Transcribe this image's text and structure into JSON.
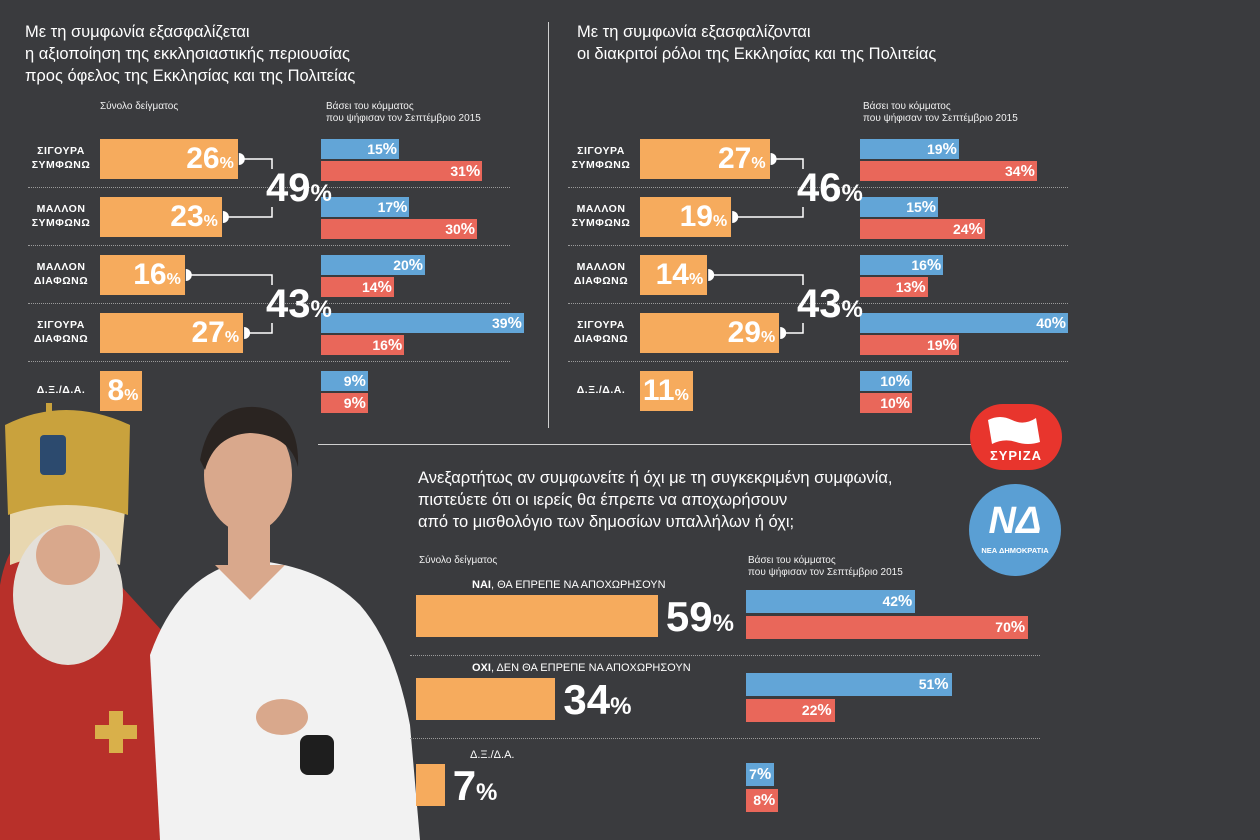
{
  "chart_data": [
    {
      "type": "bar",
      "title": "Με τη συμφωνία εξασφαλίζεται η αξιοποίηση της εκκλησιαστικής περιουσίας προς όφελος της Εκκλησίας και της Πολιτείας",
      "title_lines": [
        "Με τη συμφωνία εξασφαλίζεται",
        "η αξιοποίηση της εκκλησιαστικής περιουσίας",
        "προς όφελος της Εκκλησίας και της Πολιτείας"
      ],
      "total_label": "Σύνολο δείγματος",
      "party_label_lines": [
        "Βάσει του κόμματος",
        "που ψήφισαν τον Σεπτέμβριο 2015"
      ],
      "categories": [
        [
          "ΣΙΓΟΥΡΑ",
          "ΣΥΜΦΩΝΩ"
        ],
        [
          "ΜΑΛΛΟΝ",
          "ΣΥΜΦΩΝΩ"
        ],
        [
          "ΜΑΛΛΟΝ",
          "ΔΙΑΦΩΝΩ"
        ],
        [
          "ΣΙΓΟΥΡΑ",
          "ΔΙΑΦΩΝΩ"
        ],
        [
          "Δ.Ξ./Δ.Α."
        ]
      ],
      "total": [
        26,
        23,
        16,
        27,
        8
      ],
      "party_blue": [
        15,
        17,
        20,
        39,
        9
      ],
      "party_red": [
        31,
        30,
        14,
        16,
        9
      ],
      "agree_total": 49,
      "disagree_total": 43
    },
    {
      "type": "bar",
      "title": "Με τη συμφωνία εξασφαλίζονται οι διακριτοί ρόλοι της Εκκλησίας και της Πολιτείας",
      "title_lines": [
        "Με τη συμφωνία εξασφαλίζονται",
        "οι διακριτοί ρόλοι της Εκκλησίας και της Πολιτείας"
      ],
      "party_label_lines": [
        "Βάσει του κόμματος",
        "που ψήφισαν τον Σεπτέμβριο 2015"
      ],
      "categories": [
        [
          "ΣΙΓΟΥΡΑ",
          "ΣΥΜΦΩΝΩ"
        ],
        [
          "ΜΑΛΛΟΝ",
          "ΣΥΜΦΩΝΩ"
        ],
        [
          "ΜΑΛΛΟΝ",
          "ΔΙΑΦΩΝΩ"
        ],
        [
          "ΣΙΓΟΥΡΑ",
          "ΔΙΑΦΩΝΩ"
        ],
        [
          "Δ.Ξ./Δ.Α."
        ]
      ],
      "total": [
        27,
        19,
        14,
        29,
        11
      ],
      "party_blue": [
        19,
        15,
        16,
        40,
        10
      ],
      "party_red": [
        34,
        24,
        13,
        19,
        10
      ],
      "agree_total": 46,
      "disagree_total": 43
    },
    {
      "type": "bar",
      "title": "Ανεξαρτήτως αν συμφωνείτε ή όχι με τη συγκεκριμένη συμφωνία, πιστεύετε ότι οι ιερείς θα έπρεπε να αποχωρήσουν από το μισθολόγιο των δημοσίων υπαλλήλων ή όχι;",
      "title_lines": [
        "Ανεξαρτήτως αν συμφωνείτε ή όχι με τη συγκεκριμένη συμφωνία,",
        "πιστεύετε ότι οι ιερείς θα έπρεπε να αποχωρήσουν",
        "από το μισθολόγιο των δημοσίων υπαλλήλων ή όχι;"
      ],
      "total_label": "Σύνολο δείγματος",
      "party_label_lines": [
        "Βάσει του κόμματος",
        "που ψήφισαν τον Σεπτέμβριο 2015"
      ],
      "categories": [
        {
          "bold": "ΝΑΙ",
          "rest": ", ΘΑ ΕΠΡΕΠΕ ΝΑ ΑΠΟΧΩΡΗΣΟΥΝ"
        },
        {
          "bold": "ΟΧΙ",
          "rest": ", ΔΕΝ ΘΑ ΕΠΡΕΠΕ ΝΑ ΑΠΟΧΩΡΗΣΟΥΝ"
        },
        {
          "bold": "",
          "rest": "Δ.Ξ./Δ.Α."
        }
      ],
      "total": [
        59,
        34,
        7
      ],
      "party_blue": [
        42,
        51,
        7
      ],
      "party_red": [
        70,
        22,
        8
      ]
    }
  ],
  "logos": {
    "syriza": {
      "text": "ΣΥΡΙΖΑ",
      "color": "#e8352d"
    },
    "nd": {
      "text": "ΝΔ",
      "subtext": "ΝΕΑ ΔΗΜΟΚΡΑΤΙΑ",
      "color": "#5a9fd4"
    }
  },
  "colors": {
    "background": "#3a3b3e",
    "total_bar": "#f6ab5d",
    "party_blue": "#62a5d7",
    "party_red": "#e9675a"
  },
  "unit": "%"
}
